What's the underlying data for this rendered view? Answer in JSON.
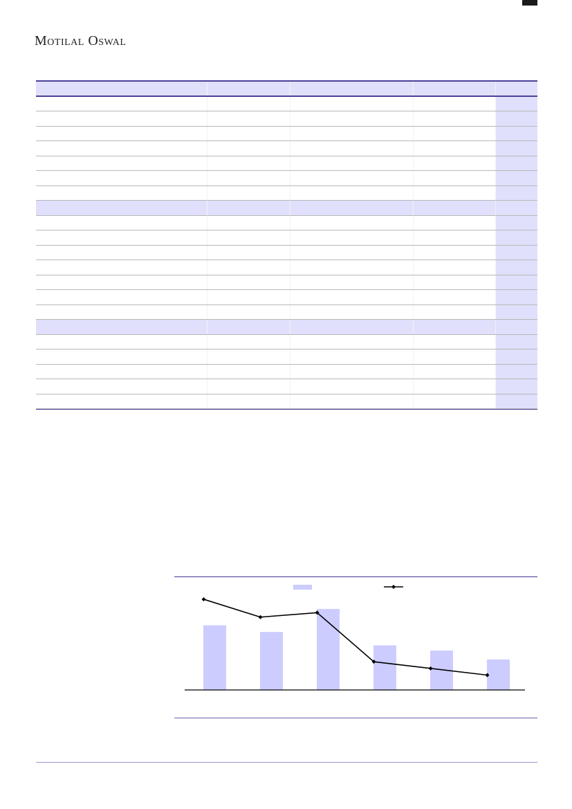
{
  "header": {
    "logo_text": "Motilal Oswal"
  },
  "table": {
    "sections": [
      {
        "type": "header",
        "rows": 7
      },
      {
        "type": "band",
        "rows": 7
      },
      {
        "type": "band",
        "rows": 5
      }
    ],
    "colors": {
      "header_fill": "#e0e0fc",
      "rule": "#4a3f9a",
      "highlight_column": "#e0e0fc"
    }
  },
  "chart_data": {
    "type": "bar",
    "categories": [
      "",
      "",
      "",
      "",
      "",
      ""
    ],
    "series": [
      {
        "type": "bar",
        "values": [
          87,
          78,
          109,
          60,
          53,
          41
        ],
        "color": "#ccccff"
      },
      {
        "type": "line",
        "values": [
          122,
          98,
          104,
          38,
          29,
          20
        ],
        "color": "#000000",
        "marker": "diamond"
      }
    ],
    "ylim": [
      0,
      130
    ],
    "grid": false,
    "legend": "top"
  }
}
